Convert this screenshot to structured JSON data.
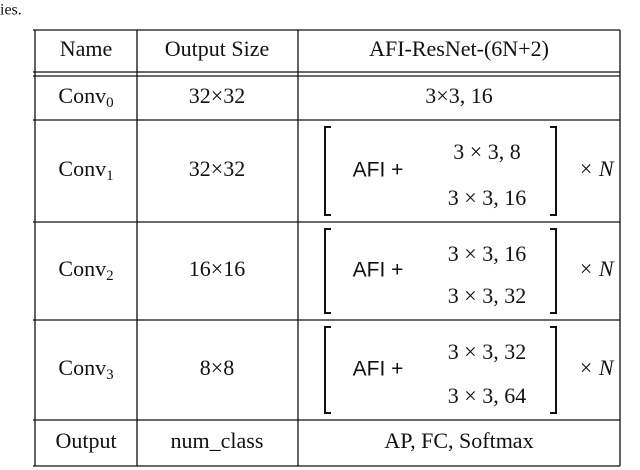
{
  "caption_fragment": "ies.",
  "table": {
    "header": [
      "Name",
      "Output Size",
      "AFI-ResNet-(6N+2)"
    ],
    "rows": [
      {
        "name": {
          "base": "Conv",
          "sub": "0"
        },
        "size": "32×32",
        "layer": "3×3, 16"
      },
      {
        "name": {
          "base": "Conv",
          "sub": "1"
        },
        "size": "32×32",
        "block": {
          "prefix": "AFI +",
          "lines": [
            "3 × 3, 8",
            "3 × 3, 16"
          ],
          "repeat": "× N"
        }
      },
      {
        "name": {
          "base": "Conv",
          "sub": "2"
        },
        "size": "16×16",
        "block": {
          "prefix": "AFI +",
          "lines": [
            "3 × 3, 16",
            "3 × 3, 32"
          ],
          "repeat": "× N"
        }
      },
      {
        "name": {
          "base": "Conv",
          "sub": "3"
        },
        "size": "8×8",
        "block": {
          "prefix": "AFI +",
          "lines": [
            "3 × 3, 32",
            "3 × 3, 64"
          ],
          "repeat": "× N"
        }
      },
      {
        "name": "Output",
        "size": "num_class",
        "layer": "AP, FC, Softmax"
      }
    ]
  }
}
